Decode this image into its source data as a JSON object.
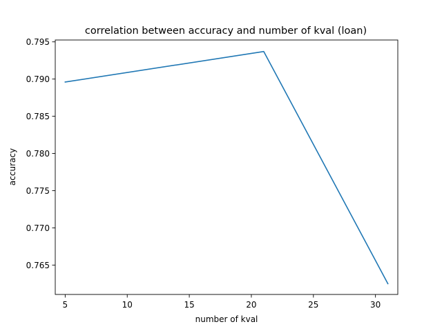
{
  "chart_data": {
    "type": "line",
    "title": "correlation between accuracy and number of kval (loan)",
    "xlabel": "number of kval",
    "ylabel": "accuracy",
    "xlim": [
      4.2,
      31.8
    ],
    "ylim": [
      0.76105,
      0.79525
    ],
    "xticks": [
      5,
      10,
      15,
      20,
      25,
      30
    ],
    "yticks": [
      0.765,
      0.77,
      0.775,
      0.78,
      0.785,
      0.79,
      0.795
    ],
    "xtick_labels": [
      "5",
      "10",
      "15",
      "20",
      "25",
      "30"
    ],
    "ytick_labels": [
      "0.765",
      "0.770",
      "0.775",
      "0.780",
      "0.785",
      "0.790",
      "0.795"
    ],
    "grid": false,
    "series": [
      {
        "x": [
          5,
          21,
          31
        ],
        "y": [
          0.7896,
          0.7937,
          0.7625
        ],
        "color": "#1f77b4"
      }
    ]
  }
}
